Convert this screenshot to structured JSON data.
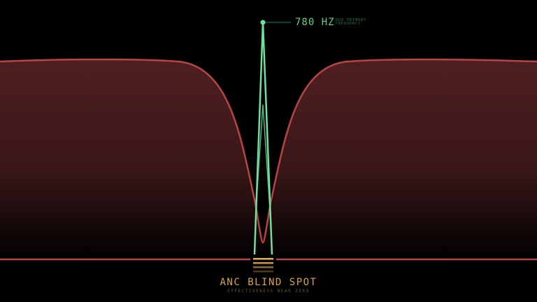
{
  "frequency": {
    "value": "780 HZ",
    "label": "DUO PRIMARY FREQUENCY"
  },
  "caption": {
    "title": "ANC BLIND SPOT",
    "subtitle": "EFFECTIVENESS NEAR ZERO"
  },
  "colors": {
    "curve": "#b84444",
    "fill": "#4a1e20",
    "spike": "#6fe0a0",
    "accent": "#d9a441",
    "baseline": "#b84444"
  }
}
